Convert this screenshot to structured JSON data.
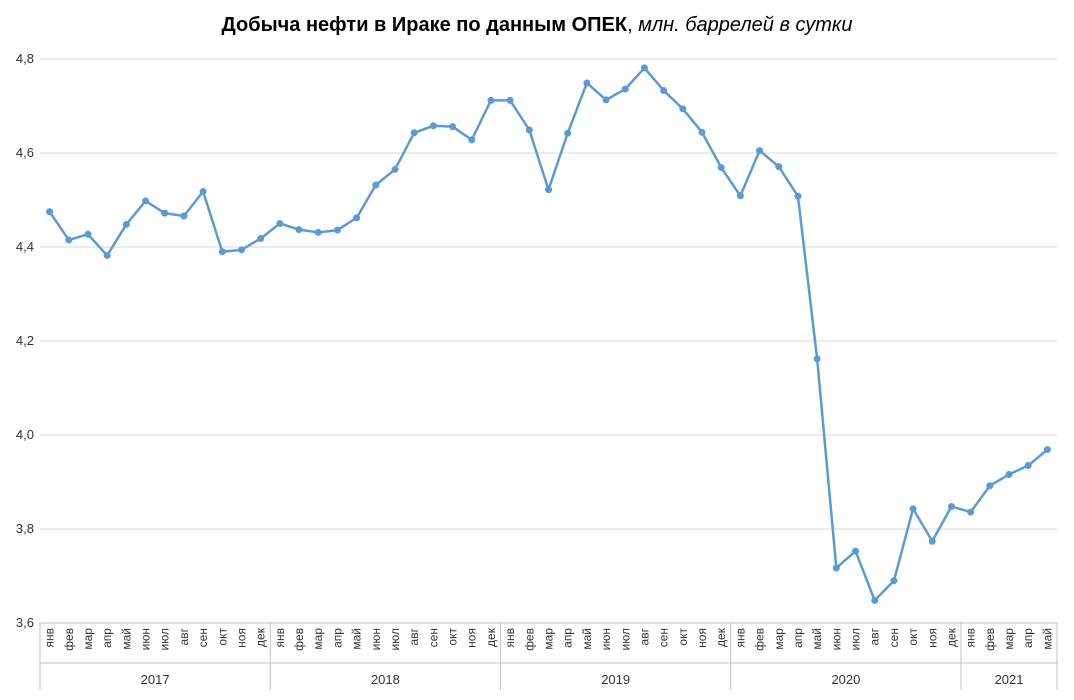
{
  "chart_data": {
    "type": "line",
    "title": "Добыча нефти в Ираке по данным ОПЕК",
    "subtitle": "млн. баррелей в сутки",
    "xlabel": "",
    "ylabel": "",
    "ylim": [
      3.6,
      4.8
    ],
    "y_ticks": [
      "3,6",
      "3,8",
      "4,0",
      "4,2",
      "4,4",
      "4,6",
      "4,8"
    ],
    "y_tick_values": [
      3.6,
      3.8,
      4.0,
      4.2,
      4.4,
      4.6,
      4.8
    ],
    "grid": true,
    "legend": "none",
    "line_color": "#5b9bd5",
    "months": [
      "янв",
      "фев",
      "мар",
      "апр",
      "май",
      "июн",
      "июл",
      "авг",
      "сен",
      "окт",
      "ноя",
      "дек"
    ],
    "years": [
      {
        "label": "2017",
        "months": 12
      },
      {
        "label": "2018",
        "months": 12
      },
      {
        "label": "2019",
        "months": 12
      },
      {
        "label": "2020",
        "months": 12
      },
      {
        "label": "2021",
        "months": 5
      }
    ],
    "series": [
      {
        "values": [
          4.475,
          4.415,
          4.427,
          4.382,
          4.448,
          4.498,
          4.472,
          4.466,
          4.518,
          4.39,
          4.394,
          4.418,
          4.45,
          4.437,
          4.431,
          4.436,
          4.462,
          4.532,
          4.565,
          4.643,
          4.658,
          4.656,
          4.628,
          4.712,
          4.712,
          4.649,
          4.522,
          4.642,
          4.749,
          4.713,
          4.736,
          4.781,
          4.733,
          4.694,
          4.644,
          4.569,
          4.509,
          4.605,
          4.571,
          4.508,
          4.162,
          3.717,
          3.753,
          3.648,
          3.69,
          3.843,
          3.774,
          3.848,
          3.836,
          3.892,
          3.916,
          3.935,
          3.969
        ]
      }
    ]
  }
}
